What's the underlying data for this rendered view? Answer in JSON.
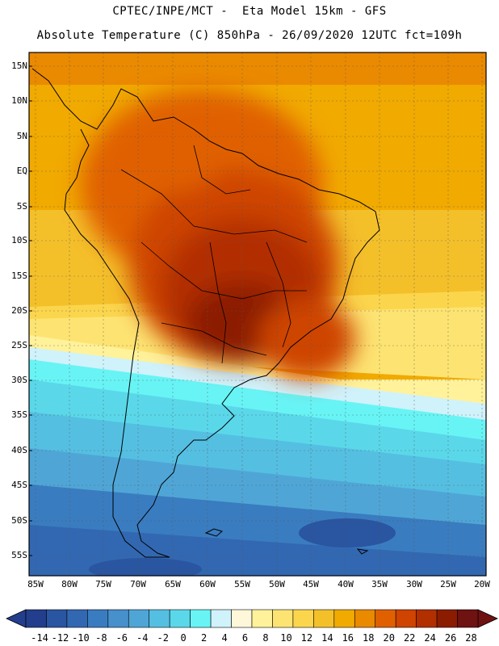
{
  "header": {
    "line1": "CPTEC/INPE/MCT -  Eta Model 15km - GFS",
    "line2": "Absolute Temperature (C) 850hPa - 26/09/2020 12UTC fct=109h"
  },
  "map": {
    "lat_labels": [
      "15N",
      "10N",
      "5N",
      "EQ",
      "5S",
      "10S",
      "15S",
      "20S",
      "25S",
      "30S",
      "35S",
      "40S",
      "45S",
      "50S",
      "55S"
    ],
    "lon_labels": [
      "85W",
      "80W",
      "75W",
      "70W",
      "65W",
      "60W",
      "55W",
      "50W",
      "45W",
      "40W",
      "35W",
      "30W",
      "25W",
      "20W"
    ]
  },
  "colorbar": {
    "labels": [
      "-14",
      "-12",
      "-10",
      "-8",
      "-6",
      "-4",
      "-2",
      "0",
      "2",
      "4",
      "6",
      "8",
      "10",
      "12",
      "14",
      "16",
      "18",
      "20",
      "22",
      "24",
      "26",
      "28"
    ],
    "colors": [
      "#233e8c",
      "#2a55a0",
      "#3268b2",
      "#3a7cc0",
      "#4690cb",
      "#4fa6d6",
      "#55bfe2",
      "#5ad8ea",
      "#68f4f5",
      "#d0f2fb",
      "#fff7d9",
      "#fff29a",
      "#fde472",
      "#fbd64d",
      "#f4c02a",
      "#f1aa00",
      "#ea8a00",
      "#e06000",
      "#ce4400",
      "#b22f00",
      "#8c1c00",
      "#6e1212"
    ]
  }
}
